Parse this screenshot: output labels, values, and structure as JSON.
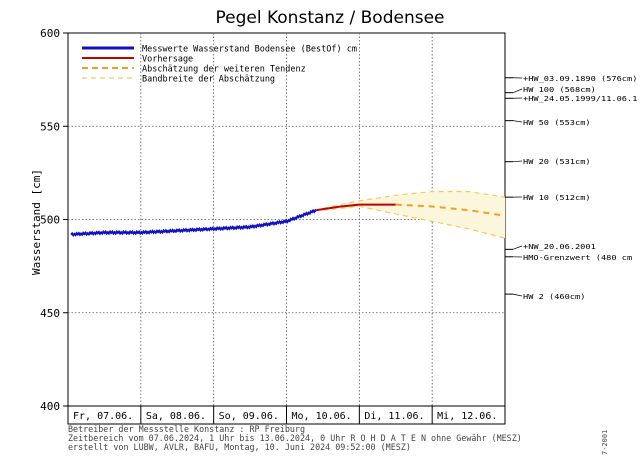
{
  "chart_data": {
    "type": "line",
    "title": "Pegel Konstanz / Bodensee",
    "ylabel": "Wasserstand [cm]",
    "ylim": [
      400,
      600
    ],
    "yticks": [
      400,
      450,
      500,
      550,
      600
    ],
    "xlim": [
      "2024-06-07T00:00",
      "2024-06-13T00:00"
    ],
    "days": [
      "Fr, 07.06.",
      "Sa, 08.06.",
      "So, 09.06.",
      "Mo, 10.06.",
      "Di, 11.06.",
      "Mi, 12.06."
    ],
    "grid": true,
    "legend": {
      "placement": "top-left",
      "entries": [
        "Messwerte Wasserstand Bodensee   (BestOf)   cm",
        "Vorhersage",
        "Abschätzung der weiteren Tendenz",
        "Bandbreite der Abschätzung"
      ]
    },
    "series": [
      {
        "name": "Messwerte Wasserstand Bodensee   (BestOf)   cm",
        "color": "#1010c0",
        "x": [
          "2024-06-07T01:00",
          "2024-06-07T12:00",
          "2024-06-08T00:00",
          "2024-06-08T12:00",
          "2024-06-09T00:00",
          "2024-06-09T12:00",
          "2024-06-10T00:00",
          "2024-06-10T09:52"
        ],
        "y": [
          492,
          493,
          493,
          494,
          495,
          496,
          499,
          505
        ]
      },
      {
        "name": "Vorhersage",
        "color": "#c00000",
        "x": [
          "2024-06-10T09:52",
          "2024-06-10T18:00",
          "2024-06-11T00:00",
          "2024-06-11T12:00"
        ],
        "y": [
          505,
          507,
          508,
          508
        ]
      },
      {
        "name": "Abschätzung der weiteren Tendenz",
        "color": "#f0a020",
        "x": [
          "2024-06-11T12:00",
          "2024-06-12T00:00",
          "2024-06-12T12:00",
          "2024-06-13T00:00"
        ],
        "y": [
          508,
          507,
          505,
          502
        ]
      },
      {
        "name": "Bandbreite der Abschätzung",
        "color": "#f8c860",
        "x": [
          "2024-06-10T12:00",
          "2024-06-11T00:00",
          "2024-06-11T12:00",
          "2024-06-12T00:00",
          "2024-06-12T12:00",
          "2024-06-13T00:00"
        ],
        "upper": [
          506,
          510,
          513,
          515,
          515,
          512
        ],
        "lower": [
          505,
          507,
          503,
          499,
          495,
          490
        ]
      }
    ],
    "reference_levels": [
      {
        "label": "+HW_03.09.1890 (576cm)",
        "value": 576
      },
      {
        "label": "HW 100 (568cm)",
        "value": 568
      },
      {
        "label": "+HW_24.05.1999/11.06.1",
        "value": 565
      },
      {
        "label": "HW 50 (553cm)",
        "value": 553
      },
      {
        "label": "HW 20 (531cm)",
        "value": 531
      },
      {
        "label": "HW 10 (512cm)",
        "value": 512
      },
      {
        "label": "+NW_20.06.2001",
        "value": 484
      },
      {
        "label": "HMO-Grenzwert (480 cm",
        "value": 480
      },
      {
        "label": "HW 2 (460cm)",
        "value": 460
      }
    ],
    "colors": {
      "band_fill": "#fbf6dc",
      "tick": "#000000"
    }
  },
  "footer": {
    "line1": "Betreiber der Messstelle Konstanz : RP Freiburg",
    "line2": "Zeitbereich vom 07.06.2024, 1 Uhr bis 13.06.2024, 0 Uhr   R O H D A T E N ohne Gewähr (MESZ)",
    "line3": "erstellt von LUBW, AVLR, BAFU, Montag, 10. Juni 2024 09:52:00 (MESZ)"
  },
  "side_code": "7-2001"
}
